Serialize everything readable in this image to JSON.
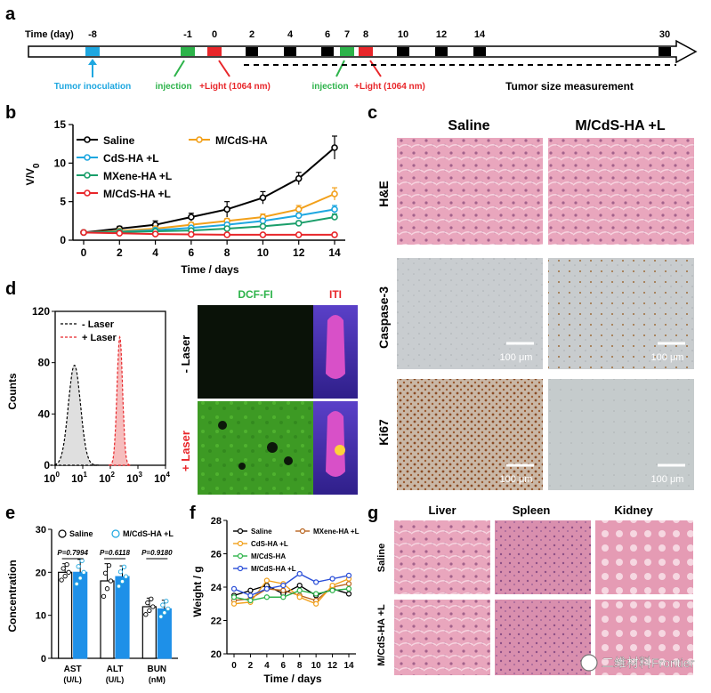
{
  "panel_letters": {
    "a": "a",
    "b": "b",
    "c": "c",
    "d": "d",
    "e": "e",
    "f": "f",
    "g": "g"
  },
  "timeline": {
    "axis_label": "Time (day)",
    "ticks": [
      "-8",
      "-1",
      "0",
      "2",
      "4",
      "6",
      "7",
      "8",
      "10",
      "12",
      "14",
      "30"
    ],
    "tumor_inoculation": "Tumor inoculation",
    "injection": "injection",
    "light": "+Light (1064 nm)",
    "measurement": "Tumor size measurement",
    "colors": {
      "inoculation": "#1ea7e0",
      "injection": "#2db34a",
      "light": "#e8262a",
      "black": "#000000"
    }
  },
  "panel_c": {
    "col_labels": [
      "Saline",
      "M/CdS-HA +L"
    ],
    "row_labels": [
      "H&E",
      "Caspase-3",
      "Ki67"
    ],
    "scale_bar": "100 μm"
  },
  "panel_d": {
    "images_col_labels": [
      "DCF-FI",
      "ITI"
    ],
    "images_row_labels": [
      "- Laser",
      "+ Laser"
    ]
  },
  "panel_g": {
    "col_labels": [
      "Liver",
      "Spleen",
      "Kidney"
    ],
    "row_labels": [
      "Saline",
      "M/CdS-HA +L"
    ]
  },
  "watermark": "二维材料Frontier",
  "chart_data": [
    {
      "panel": "b",
      "type": "line",
      "xlabel": "Time / days",
      "ylabel": "V/V",
      "ylabel_sub": "0",
      "x": [
        0,
        2,
        4,
        6,
        8,
        10,
        12,
        14
      ],
      "xlim": [
        0,
        14
      ],
      "ylim": [
        0,
        15
      ],
      "yticks": [
        0,
        5,
        10,
        15
      ],
      "xticks": [
        0,
        2,
        4,
        6,
        8,
        10,
        12,
        14
      ],
      "legend_position": "top-left",
      "series": [
        {
          "name": "Saline",
          "color": "#000000",
          "values": [
            1,
            1.5,
            2,
            3,
            4,
            5.5,
            8,
            12
          ],
          "errors": [
            0.15,
            0.3,
            0.5,
            0.5,
            1.0,
            0.8,
            0.8,
            1.5
          ]
        },
        {
          "name": "M/CdS-HA",
          "color": "#f2a01a",
          "values": [
            1,
            1.2,
            1.5,
            2,
            2.5,
            3,
            4,
            6
          ],
          "errors": [
            0.1,
            0.2,
            0.2,
            0.3,
            0.3,
            0.4,
            0.5,
            0.8
          ]
        },
        {
          "name": "CdS-HA +L",
          "color": "#1ea7e0",
          "values": [
            1,
            1.1,
            1.3,
            1.6,
            2,
            2.5,
            3.2,
            4
          ],
          "errors": [
            0.1,
            0.1,
            0.2,
            0.2,
            0.2,
            0.3,
            0.3,
            0.5
          ]
        },
        {
          "name": "MXene-HA +L",
          "color": "#1a9e6a",
          "values": [
            1,
            1.05,
            1.15,
            1.25,
            1.5,
            1.8,
            2.2,
            3
          ],
          "errors": [
            0.1,
            0.1,
            0.1,
            0.1,
            0.2,
            0.2,
            0.3,
            0.4
          ]
        },
        {
          "name": "M/CdS-HA +L",
          "color": "#e8262a",
          "values": [
            1,
            0.9,
            0.8,
            0.75,
            0.7,
            0.7,
            0.7,
            0.7
          ],
          "errors": [
            0.05,
            0.05,
            0.05,
            0.05,
            0.05,
            0.05,
            0.05,
            0.05
          ]
        }
      ]
    },
    {
      "panel": "d",
      "type": "area",
      "xlabel": "",
      "ylabel": "Counts",
      "x_scale": "log",
      "xlim": [
        1,
        10000
      ],
      "ylim": [
        0,
        120
      ],
      "yticks": [
        0,
        40,
        80,
        120
      ],
      "xtick_labels": [
        "10",
        "10",
        "10",
        "10",
        "10"
      ],
      "xtick_exponents": [
        "0",
        "1",
        "2",
        "3",
        "4"
      ],
      "legend_position": "top-left",
      "series": [
        {
          "name": "- Laser",
          "color": "#000000",
          "fill": "#d9d9d9",
          "peak_x": 5,
          "peak_y": 78,
          "log_width": 0.22
        },
        {
          "name": "+ Laser",
          "color": "#e8262a",
          "fill": "#f5b2b2",
          "peak_x": 220,
          "peak_y": 100,
          "log_width": 0.1
        }
      ]
    },
    {
      "panel": "e",
      "type": "bar",
      "ylabel": "Concentration",
      "categories": [
        "AST",
        "ALT",
        "BUN"
      ],
      "category_units": [
        "(U/L)",
        "(U/L)",
        "(nM)"
      ],
      "ylim": [
        0,
        30
      ],
      "yticks": [
        0,
        10,
        20,
        30
      ],
      "legend_position": "top",
      "series": [
        {
          "name": "Saline",
          "color": "#ffffff",
          "edge": "#000000",
          "values": [
            20,
            18,
            12
          ],
          "errors": [
            2,
            4,
            2
          ]
        },
        {
          "name": "M/CdS-HA +L",
          "color": "#1e90e8",
          "edge": "#1e90e8",
          "values": [
            20,
            19,
            11.5
          ],
          "errors": [
            3,
            2.5,
            2
          ]
        }
      ],
      "annotations": [
        "P=0.7994",
        "P=0.6118",
        "P=0.9180"
      ]
    },
    {
      "panel": "f",
      "type": "line",
      "xlabel": "Time / days",
      "ylabel": "Weight / g",
      "x": [
        0,
        2,
        4,
        6,
        8,
        10,
        12,
        14
      ],
      "xlim": [
        0,
        14
      ],
      "ylim": [
        20,
        28
      ],
      "yticks": [
        20,
        22,
        24,
        26,
        28
      ],
      "xticks": [
        0,
        2,
        4,
        6,
        8,
        10,
        12,
        14
      ],
      "legend_position": "top",
      "series": [
        {
          "name": "Saline",
          "color": "#000000",
          "values": [
            23.5,
            23.8,
            24.1,
            23.6,
            24.1,
            23.5,
            23.9,
            23.6
          ]
        },
        {
          "name": "MXene-HA +L",
          "color": "#b8641e",
          "values": [
            23.2,
            23.3,
            23.9,
            23.8,
            23.5,
            23.2,
            24.0,
            24.2
          ]
        },
        {
          "name": "CdS-HA +L",
          "color": "#f2a01a",
          "values": [
            23.0,
            23.1,
            24.4,
            24.2,
            23.4,
            23.0,
            24.1,
            24.5
          ]
        },
        {
          "name": "M/CdS-HA",
          "color": "#2db34a",
          "values": [
            23.4,
            23.2,
            23.4,
            23.4,
            23.8,
            23.6,
            23.8,
            23.9
          ]
        },
        {
          "name": "M/CdS-HA +L",
          "color": "#2a4ed8",
          "values": [
            23.9,
            23.5,
            23.9,
            24.1,
            24.8,
            24.3,
            24.5,
            24.7
          ]
        }
      ]
    }
  ]
}
